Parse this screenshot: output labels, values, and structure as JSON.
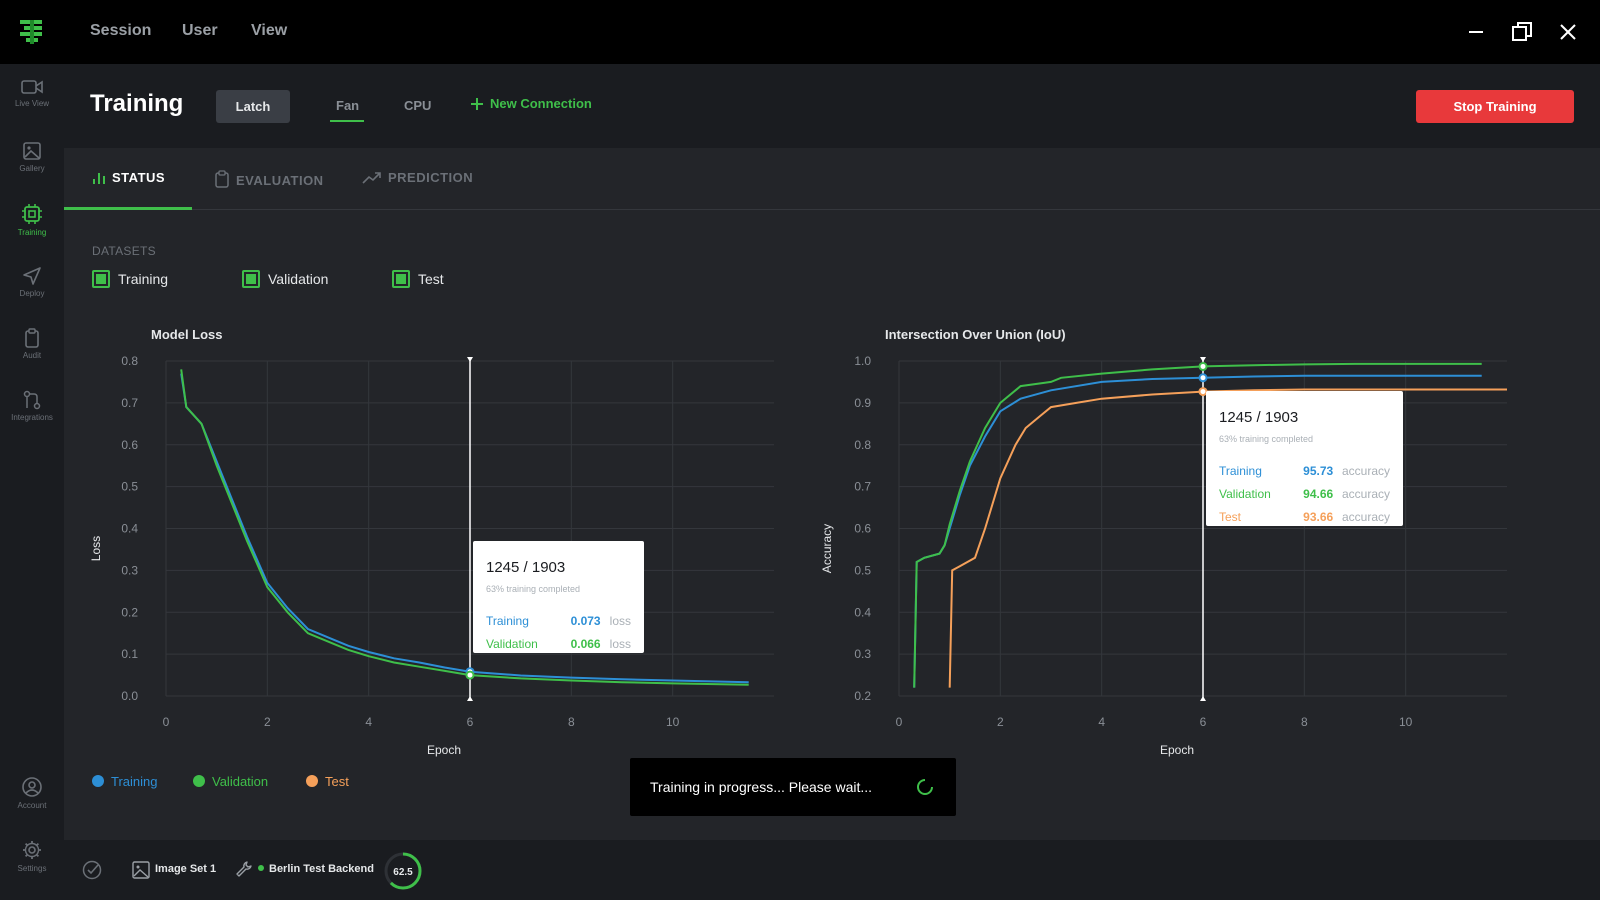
{
  "menu": {
    "session": "Session",
    "user": "User",
    "view": "View"
  },
  "rail": {
    "live_view": "Live View",
    "gallery": "Gallery",
    "training": "Training",
    "deploy": "Deploy",
    "audit": "Audit",
    "integrations": "Integrations",
    "account": "Account",
    "settings": "Settings"
  },
  "header": {
    "title": "Training",
    "latch": "Latch",
    "tab_fan": "Fan",
    "tab_cpu": "CPU",
    "new_connection": "New Connection",
    "stop": "Stop Training"
  },
  "tabs": {
    "status": "STATUS",
    "evaluation": "EVALUATION",
    "prediction": "PREDICTION"
  },
  "datasets": {
    "heading": "DATASETS",
    "training": "Training",
    "validation": "Validation",
    "test": "Test"
  },
  "colors": {
    "training": "#2d8fd6",
    "validation": "#3fbf4a",
    "test": "#f5a05a",
    "stop": "#e8393b"
  },
  "legend": {
    "training": "Training",
    "validation": "Validation",
    "test": "Test"
  },
  "toast": {
    "text": "Training in progress... Please wait..."
  },
  "statusbar": {
    "image_set": "Image Set 1",
    "backend": "Berlin Test Backend",
    "progress": "62.5",
    "progress_fraction": 0.625
  },
  "chart_data": [
    {
      "type": "line",
      "title": "Model Loss",
      "xlabel": "Epoch",
      "ylabel": "Loss",
      "xlim": [
        0,
        12
      ],
      "ylim": [
        0,
        0.8
      ],
      "xticks": [
        "0",
        "2",
        "4",
        "6",
        "8",
        "10"
      ],
      "yticks": [
        "0.0",
        "0.1",
        "0.2",
        "0.3",
        "0.4",
        "0.5",
        "0.6",
        "0.7",
        "0.8"
      ],
      "grid": true,
      "cursor_x": 6,
      "series": [
        {
          "name": "Training",
          "x": [
            0.3,
            0.4,
            0.7,
            1.0,
            1.3,
            1.6,
            2.0,
            2.4,
            2.8,
            3.2,
            3.6,
            4.0,
            4.5,
            5.0,
            5.5,
            6.0,
            7.0,
            8.0,
            9.0,
            10.0,
            11.5
          ],
          "y": [
            0.77,
            0.69,
            0.65,
            0.56,
            0.47,
            0.38,
            0.27,
            0.21,
            0.16,
            0.14,
            0.12,
            0.105,
            0.09,
            0.08,
            0.068,
            0.058,
            0.049,
            0.044,
            0.04,
            0.037,
            0.033
          ]
        },
        {
          "name": "Validation",
          "x": [
            0.3,
            0.4,
            0.7,
            1.0,
            1.3,
            1.6,
            2.0,
            2.4,
            2.8,
            3.2,
            3.6,
            4.0,
            4.5,
            5.0,
            5.5,
            6.0,
            7.0,
            8.0,
            9.0,
            10.0,
            11.5
          ],
          "y": [
            0.78,
            0.69,
            0.65,
            0.55,
            0.46,
            0.37,
            0.26,
            0.2,
            0.15,
            0.13,
            0.11,
            0.095,
            0.08,
            0.07,
            0.06,
            0.05,
            0.042,
            0.037,
            0.033,
            0.03,
            0.027
          ]
        }
      ],
      "tooltip": {
        "title": "1245 / 1903",
        "subtitle": "63% training completed",
        "rows": [
          {
            "label": "Training",
            "value": "0.073",
            "unit": "loss"
          },
          {
            "label": "Validation",
            "value": "0.066",
            "unit": "loss"
          }
        ]
      }
    },
    {
      "type": "line",
      "title": "Intersection Over Union (IoU)",
      "xlabel": "Epoch",
      "ylabel": "Accuracy",
      "xlim": [
        0,
        12
      ],
      "ylim": [
        0.2,
        1.0
      ],
      "xticks": [
        "0",
        "2",
        "4",
        "6",
        "8",
        "10"
      ],
      "yticks": [
        "0.2",
        "0.3",
        "0.4",
        "0.5",
        "0.6",
        "0.7",
        "0.8",
        "0.9",
        "1.0"
      ],
      "grid": true,
      "cursor_x": 6,
      "series": [
        {
          "name": "Training",
          "x": [
            0.3,
            0.35,
            0.5,
            0.8,
            0.9,
            1.0,
            1.2,
            1.4,
            1.7,
            2.0,
            2.4,
            3.0,
            4.0,
            5.0,
            6.0,
            7.0,
            8.0,
            9.0,
            10.0,
            11.0,
            11.5
          ],
          "y": [
            0.22,
            0.52,
            0.53,
            0.54,
            0.56,
            0.6,
            0.68,
            0.75,
            0.82,
            0.88,
            0.91,
            0.93,
            0.95,
            0.957,
            0.96,
            0.963,
            0.965,
            0.965,
            0.965,
            0.965,
            0.965
          ]
        },
        {
          "name": "Validation",
          "x": [
            0.3,
            0.35,
            0.5,
            0.8,
            0.9,
            1.0,
            1.2,
            1.4,
            1.7,
            2.0,
            2.4,
            3.0,
            3.2,
            4.0,
            5.0,
            6.0,
            7.0,
            8.0,
            9.0,
            10.0,
            11.5
          ],
          "y": [
            0.22,
            0.52,
            0.53,
            0.54,
            0.56,
            0.61,
            0.69,
            0.76,
            0.84,
            0.9,
            0.94,
            0.95,
            0.96,
            0.97,
            0.98,
            0.987,
            0.99,
            0.992,
            0.993,
            0.993,
            0.993
          ]
        },
        {
          "name": "Test",
          "x": [
            1.0,
            1.05,
            1.2,
            1.5,
            1.7,
            2.0,
            2.3,
            2.5,
            2.8,
            3.0,
            3.5,
            4.0,
            5.0,
            6.0,
            7.0,
            8.0,
            9.0,
            10.0,
            11.0,
            12.0
          ],
          "y": [
            0.22,
            0.5,
            0.51,
            0.53,
            0.6,
            0.72,
            0.8,
            0.84,
            0.87,
            0.89,
            0.9,
            0.91,
            0.92,
            0.927,
            0.93,
            0.932,
            0.932,
            0.932,
            0.932,
            0.932
          ]
        }
      ],
      "tooltip": {
        "title": "1245 / 1903",
        "subtitle": "63% training completed",
        "rows": [
          {
            "label": "Training",
            "value": "95.73",
            "unit": "accuracy"
          },
          {
            "label": "Validation",
            "value": "94.66",
            "unit": "accuracy"
          },
          {
            "label": "Test",
            "value": "93.66",
            "unit": "accuracy"
          }
        ]
      }
    }
  ]
}
